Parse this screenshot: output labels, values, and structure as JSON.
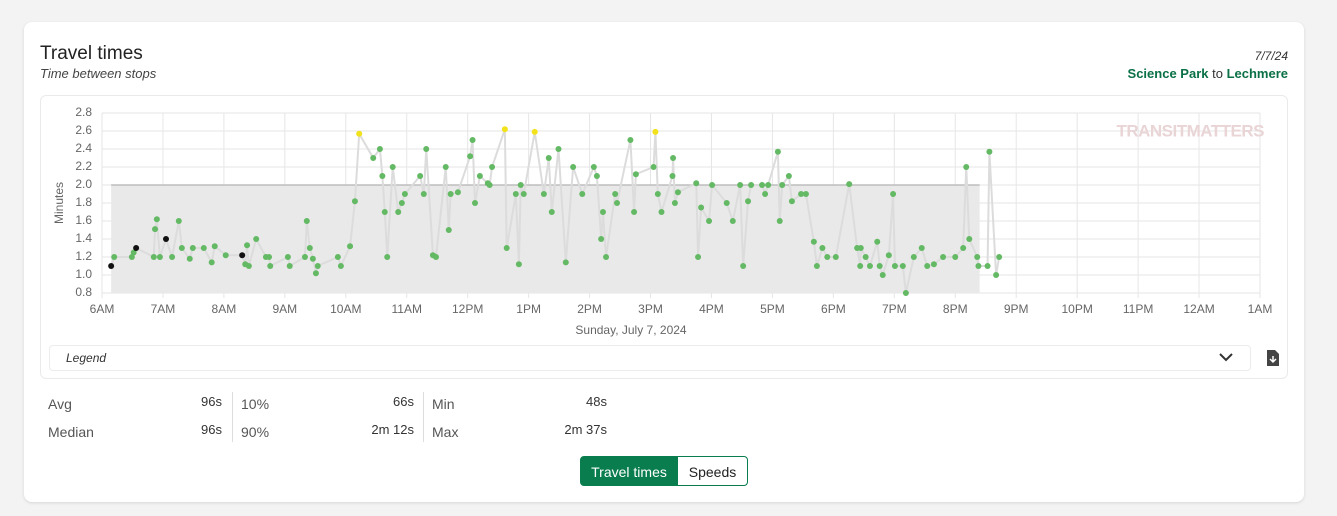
{
  "header": {
    "title": "Travel times",
    "subtitle": "Time between stops",
    "date": "7/7/24",
    "from": "Science Park",
    "to_word": "to",
    "to": "Lechmere"
  },
  "chart_data": {
    "type": "line_scatter",
    "xlabel": "Sunday, July 7, 2024",
    "ylabel": "Minutes",
    "watermark": "TRANSITMATTERS",
    "xlim": [
      6,
      25
    ],
    "ylim": [
      0.8,
      2.8
    ],
    "xticks": [
      {
        "value": 6,
        "label": "6AM"
      },
      {
        "value": 7,
        "label": "7AM"
      },
      {
        "value": 8,
        "label": "8AM"
      },
      {
        "value": 9,
        "label": "9AM"
      },
      {
        "value": 10,
        "label": "10AM"
      },
      {
        "value": 11,
        "label": "11AM"
      },
      {
        "value": 12,
        "label": "12PM"
      },
      {
        "value": 13,
        "label": "1PM"
      },
      {
        "value": 14,
        "label": "2PM"
      },
      {
        "value": 15,
        "label": "3PM"
      },
      {
        "value": 16,
        "label": "4PM"
      },
      {
        "value": 17,
        "label": "5PM"
      },
      {
        "value": 18,
        "label": "6PM"
      },
      {
        "value": 19,
        "label": "7PM"
      },
      {
        "value": 20,
        "label": "8PM"
      },
      {
        "value": 21,
        "label": "9PM"
      },
      {
        "value": 22,
        "label": "10PM"
      },
      {
        "value": 23,
        "label": "11PM"
      },
      {
        "value": 24,
        "label": "12AM"
      },
      {
        "value": 25,
        "label": "1AM"
      }
    ],
    "yticks": [
      {
        "value": 0.8,
        "label": "0.8"
      },
      {
        "value": 1.0,
        "label": "1.0"
      },
      {
        "value": 1.2,
        "label": "1.2"
      },
      {
        "value": 1.4,
        "label": "1.4"
      },
      {
        "value": 1.6,
        "label": "1.6"
      },
      {
        "value": 1.8,
        "label": "1.8"
      },
      {
        "value": 2.0,
        "label": "2.0"
      },
      {
        "value": 2.2,
        "label": "2.2"
      },
      {
        "value": 2.4,
        "label": "2.4"
      },
      {
        "value": 2.6,
        "label": "2.6"
      },
      {
        "value": 2.8,
        "label": "2.8"
      }
    ],
    "grid": true,
    "line_color": "#dcdcdc",
    "benchmark": {
      "x": [
        6.15,
        20.4
      ],
      "y": 2.0,
      "color": "#e9e9e9",
      "edge_color": "#bdbdbd"
    },
    "x": [
      6.15,
      6.2,
      6.49,
      6.52,
      6.56,
      6.85,
      6.87,
      6.9,
      6.95,
      7.05,
      7.15,
      7.26,
      7.31,
      7.44,
      7.49,
      7.67,
      7.8,
      7.85,
      8.03,
      8.3,
      8.35,
      8.38,
      8.41,
      8.53,
      8.69,
      8.74,
      8.76,
      9.05,
      9.08,
      9.33,
      9.36,
      9.41,
      9.46,
      9.51,
      9.54,
      9.87,
      9.92,
      10.07,
      10.15,
      10.22,
      10.45,
      10.56,
      10.6,
      10.64,
      10.68,
      10.77,
      10.86,
      10.92,
      10.97,
      11.22,
      11.28,
      11.32,
      11.43,
      11.48,
      11.64,
      11.69,
      11.72,
      11.84,
      12.04,
      12.08,
      12.12,
      12.2,
      12.33,
      12.36,
      12.4,
      12.61,
      12.64,
      12.79,
      12.84,
      12.87,
      12.92,
      13.1,
      13.25,
      13.33,
      13.38,
      13.49,
      13.61,
      13.73,
      13.88,
      14.07,
      14.12,
      14.19,
      14.22,
      14.27,
      14.42,
      14.45,
      14.67,
      14.73,
      14.76,
      15.05,
      15.08,
      15.12,
      15.18,
      15.36,
      15.37,
      15.4,
      15.45,
      15.75,
      15.78,
      15.83,
      15.96,
      16.01,
      16.25,
      16.35,
      16.47,
      16.52,
      16.6,
      16.65,
      16.83,
      16.88,
      16.93,
      17.09,
      17.12,
      17.16,
      17.27,
      17.32,
      17.47,
      17.55,
      17.68,
      17.73,
      17.82,
      17.9,
      18.04,
      18.26,
      18.39,
      18.44,
      18.45,
      18.53,
      18.6,
      18.72,
      18.76,
      18.81,
      18.91,
      18.98,
      19.01,
      19.14,
      19.19,
      19.32,
      19.45,
      19.54,
      19.65,
      19.8,
      20.0,
      20.13,
      20.18,
      20.23,
      20.36,
      20.38,
      20.53,
      20.56,
      20.67,
      20.72
    ],
    "values": [
      1.1,
      1.2,
      1.2,
      1.25,
      1.3,
      1.2,
      1.51,
      1.62,
      1.2,
      1.4,
      1.2,
      1.6,
      1.3,
      1.18,
      1.3,
      1.3,
      1.14,
      1.32,
      1.22,
      1.22,
      1.12,
      1.33,
      1.1,
      1.4,
      1.2,
      1.2,
      1.1,
      1.2,
      1.1,
      1.2,
      1.6,
      1.3,
      1.18,
      1.02,
      1.1,
      1.2,
      1.1,
      1.32,
      1.82,
      2.57,
      2.3,
      2.4,
      2.1,
      1.7,
      1.2,
      2.2,
      1.7,
      1.8,
      1.9,
      2.1,
      1.9,
      2.4,
      1.22,
      1.2,
      2.2,
      1.5,
      1.9,
      1.92,
      2.32,
      2.5,
      1.8,
      2.1,
      2.02,
      2.0,
      2.2,
      2.62,
      1.3,
      1.9,
      1.12,
      2.0,
      1.9,
      2.59,
      1.9,
      2.3,
      1.7,
      2.4,
      1.14,
      2.2,
      1.9,
      2.2,
      2.1,
      1.4,
      1.7,
      1.2,
      1.9,
      1.8,
      2.5,
      1.7,
      2.12,
      2.2,
      2.59,
      1.9,
      1.7,
      2.1,
      2.3,
      1.8,
      1.92,
      2.02,
      1.2,
      1.75,
      1.6,
      2.0,
      1.8,
      1.6,
      2.0,
      1.1,
      1.82,
      2.0,
      2.0,
      1.9,
      2.0,
      2.37,
      1.6,
      2.0,
      2.1,
      1.82,
      1.9,
      1.9,
      1.37,
      1.1,
      1.3,
      1.2,
      1.2,
      2.01,
      1.3,
      1.1,
      1.3,
      1.2,
      1.1,
      1.37,
      1.1,
      1.0,
      1.22,
      1.9,
      1.1,
      1.1,
      0.8,
      1.2,
      1.3,
      1.1,
      1.12,
      1.2,
      1.2,
      1.3,
      2.2,
      1.4,
      1.2,
      1.1,
      1.1,
      2.37,
      1.0,
      1.2
    ],
    "point_colors": [
      "#111111",
      "#64b964",
      "#64b964",
      "#64b964",
      "#111111",
      "#64b964",
      "#64b964",
      "#64b964",
      "#64b964",
      "#111111",
      "#64b964",
      "#64b964",
      "#64b964",
      "#64b964",
      "#64b964",
      "#64b964",
      "#64b964",
      "#64b964",
      "#64b964",
      "#111111",
      "#64b964",
      "#64b964",
      "#64b964",
      "#64b964",
      "#64b964",
      "#64b964",
      "#64b964",
      "#64b964",
      "#64b964",
      "#64b964",
      "#64b964",
      "#64b964",
      "#64b964",
      "#64b964",
      "#64b964",
      "#64b964",
      "#64b964",
      "#64b964",
      "#64b964",
      "#f2e21b",
      "#64b964",
      "#64b964",
      "#64b964",
      "#64b964",
      "#64b964",
      "#64b964",
      "#64b964",
      "#64b964",
      "#64b964",
      "#64b964",
      "#64b964",
      "#64b964",
      "#64b964",
      "#64b964",
      "#64b964",
      "#64b964",
      "#64b964",
      "#64b964",
      "#64b964",
      "#64b964",
      "#64b964",
      "#64b964",
      "#64b964",
      "#64b964",
      "#64b964",
      "#f2e21b",
      "#64b964",
      "#64b964",
      "#64b964",
      "#64b964",
      "#64b964",
      "#f2e21b",
      "#64b964",
      "#64b964",
      "#64b964",
      "#64b964",
      "#64b964",
      "#64b964",
      "#64b964",
      "#64b964",
      "#64b964",
      "#64b964",
      "#64b964",
      "#64b964",
      "#64b964",
      "#64b964",
      "#64b964",
      "#64b964",
      "#64b964",
      "#64b964",
      "#f2e21b",
      "#64b964",
      "#64b964",
      "#64b964",
      "#64b964",
      "#64b964",
      "#64b964",
      "#64b964",
      "#64b964",
      "#64b964",
      "#64b964",
      "#64b964",
      "#64b964",
      "#64b964",
      "#64b964",
      "#64b964",
      "#64b964",
      "#64b964",
      "#64b964",
      "#64b964",
      "#64b964",
      "#64b964",
      "#64b964",
      "#64b964",
      "#64b964",
      "#64b964",
      "#64b964",
      "#64b964",
      "#64b964",
      "#64b964",
      "#64b964",
      "#64b964",
      "#64b964",
      "#64b964",
      "#64b964",
      "#64b964",
      "#64b964",
      "#64b964",
      "#64b964",
      "#64b964",
      "#64b964",
      "#64b964",
      "#64b964",
      "#64b964",
      "#64b964",
      "#64b964",
      "#64b964",
      "#64b964",
      "#64b964",
      "#64b964",
      "#64b964",
      "#64b964",
      "#64b964",
      "#64b964",
      "#64b964",
      "#64b964",
      "#64b964",
      "#64b964",
      "#64b964",
      "#64b964",
      "#64b964",
      "#64b964"
    ]
  },
  "legend": {
    "label": "Legend"
  },
  "stats": [
    [
      {
        "label": "Avg",
        "value": "96s"
      },
      {
        "label": "Median",
        "value": "96s"
      }
    ],
    [
      {
        "label": "10%",
        "value": "66s"
      },
      {
        "label": "90%",
        "value": "2m 12s"
      }
    ],
    [
      {
        "label": "Min",
        "value": "48s"
      },
      {
        "label": "Max",
        "value": "2m 37s"
      }
    ]
  ],
  "toggle": [
    "Travel times",
    "Speeds"
  ]
}
